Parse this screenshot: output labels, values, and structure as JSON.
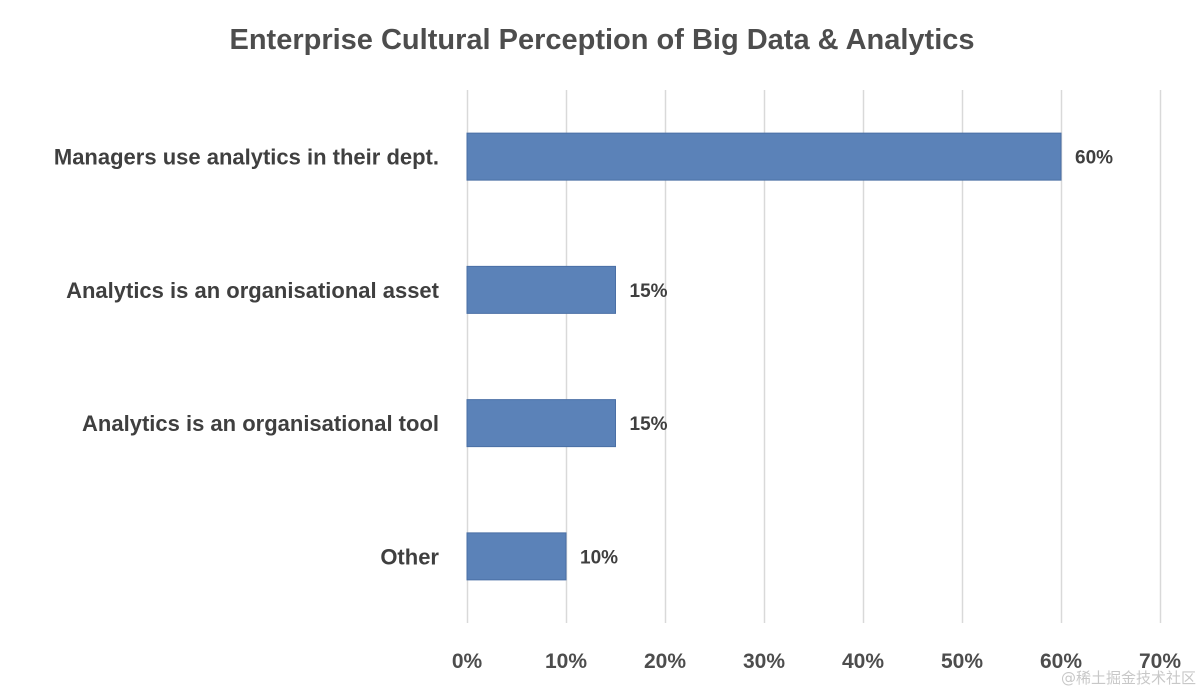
{
  "chart_data": {
    "type": "bar",
    "orientation": "horizontal",
    "title": "Enterprise Cultural Perception of Big Data & Analytics",
    "categories": [
      "Managers use analytics in their dept.",
      "Analytics is an organisational asset",
      "Analytics is an organisational tool",
      "Other"
    ],
    "values": [
      60,
      15,
      15,
      10
    ],
    "data_labels": [
      "60%",
      "15%",
      "15%",
      "10%"
    ],
    "xlim": [
      0,
      70
    ],
    "xticks": [
      0,
      10,
      20,
      30,
      40,
      50,
      60,
      70
    ],
    "xtick_labels": [
      "0%",
      "10%",
      "20%",
      "30%",
      "40%",
      "50%",
      "60%",
      "70%"
    ],
    "xlabel": "",
    "ylabel": "",
    "grid": "vertical",
    "legend": "none",
    "bar_color": "#5b82b8",
    "grid_color": "#d9d9d9"
  },
  "watermark": "@稀土掘金技术社区"
}
